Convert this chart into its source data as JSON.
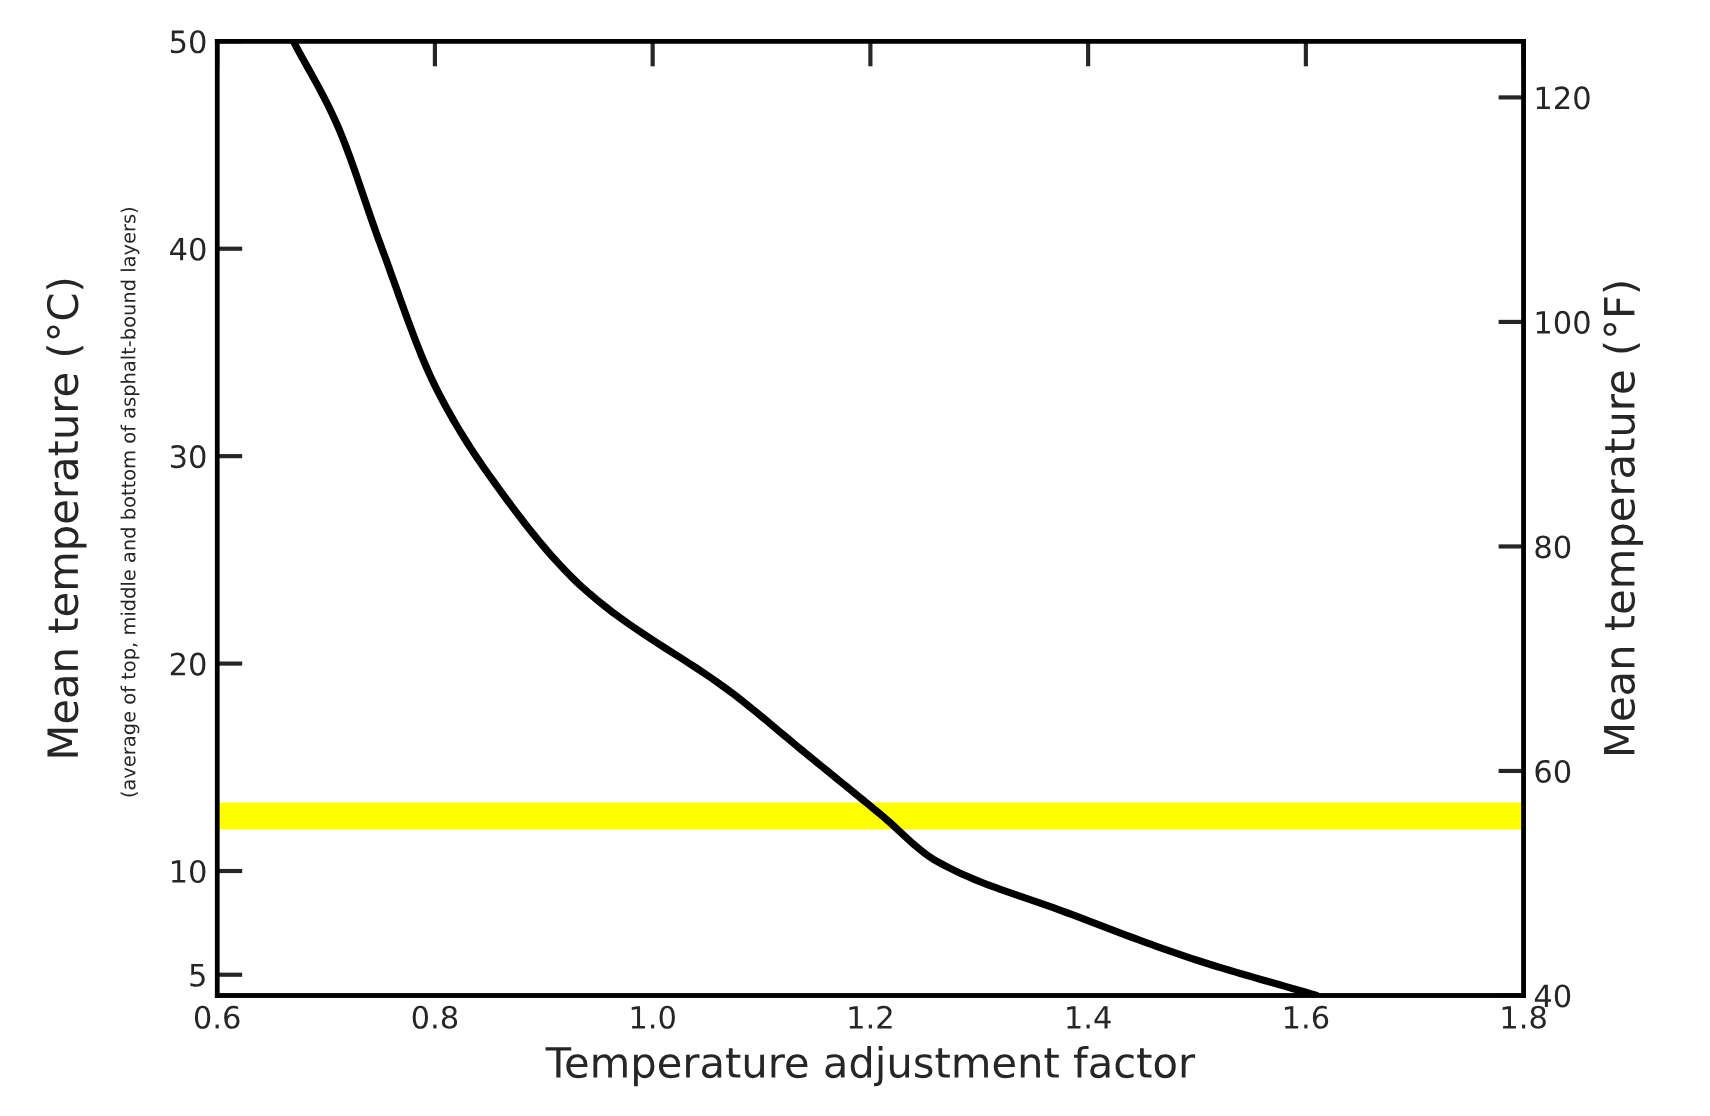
{
  "chart_data": {
    "type": "line",
    "xlabel": "Temperature adjustment factor",
    "ylabel": "Mean temperature (°C)",
    "y2label": "Mean temperature (°F)",
    "annotations": [
      "(average of top, middle and bottom of asphalt-bound layers)"
    ],
    "x": [
      0.67,
      0.71,
      0.75,
      0.8,
      0.855,
      0.935,
      1.075,
      1.14,
      1.21,
      1.26,
      1.38,
      1.5,
      1.61
    ],
    "series": [
      {
        "color": "#000000",
        "values": [
          50,
          46.0,
          40.2,
          33.4,
          28.7,
          23.7,
          18.5,
          15.7,
          12.7,
          10.5,
          8.0,
          5.7,
          4.0
        ]
      }
    ],
    "xlim": [
      0.6,
      1.8
    ],
    "xticks": [
      0.6,
      0.8,
      {
        "value": 1.0,
        "label": "1.0"
      },
      1.2,
      1.4,
      1.6,
      1.8
    ],
    "ylim": [
      4,
      50
    ],
    "yticks": [
      5,
      10,
      20,
      30,
      40,
      50
    ],
    "y2lim": [
      40,
      125
    ],
    "y2ticks": [
      40,
      60,
      80,
      100,
      120
    ],
    "bands": [
      {
        "axis": "y",
        "from": 12.0,
        "to": 13.3,
        "color": "#ffff00"
      }
    ],
    "grid": false,
    "legend": false,
    "marker": "none",
    "line_style": "solid"
  }
}
